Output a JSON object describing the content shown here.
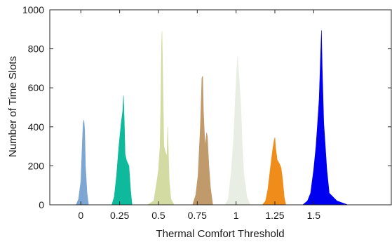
{
  "chart_data": {
    "type": "area",
    "title": "",
    "xlabel": "Thermal Comfort Threshold",
    "ylabel": "Number of Time Slots",
    "xlim": [
      -0.2,
      2.0
    ],
    "ylim": [
      0,
      1000
    ],
    "x_ticks": [
      {
        "value": 0,
        "label": "0"
      },
      {
        "value": 0.25,
        "label": "0.25"
      },
      {
        "value": 0.5,
        "label": "0.5"
      },
      {
        "value": 0.75,
        "label": "0.75"
      },
      {
        "value": 1,
        "label": "1"
      },
      {
        "value": 1.25,
        "label": "1.25"
      },
      {
        "value": 1.5,
        "label": "1.5"
      }
    ],
    "y_ticks": [
      {
        "value": 0,
        "label": "0"
      },
      {
        "value": 200,
        "label": "200"
      },
      {
        "value": 400,
        "label": "400"
      },
      {
        "value": 600,
        "label": "600"
      },
      {
        "value": 800,
        "label": "800"
      },
      {
        "value": 1000,
        "label": "1000"
      }
    ],
    "grid": false,
    "series": [
      {
        "color": "#7ea6d3",
        "points": [
          [
            -0.03,
            0
          ],
          [
            -0.015,
            30
          ],
          [
            0,
            120
          ],
          [
            0.01,
            330
          ],
          [
            0.015,
            420
          ],
          [
            0.02,
            435
          ],
          [
            0.025,
            380
          ],
          [
            0.03,
            200
          ],
          [
            0.04,
            60
          ],
          [
            0.05,
            0
          ]
        ]
      },
      {
        "color": "#0fb99b",
        "points": [
          [
            0.2,
            0
          ],
          [
            0.215,
            40
          ],
          [
            0.23,
            150
          ],
          [
            0.245,
            300
          ],
          [
            0.26,
            420
          ],
          [
            0.27,
            480
          ],
          [
            0.275,
            560
          ],
          [
            0.28,
            420
          ],
          [
            0.285,
            260
          ],
          [
            0.295,
            225
          ],
          [
            0.31,
            200
          ],
          [
            0.32,
            80
          ],
          [
            0.33,
            0
          ]
        ]
      },
      {
        "color": "#d3dba3",
        "points": [
          [
            0.43,
            0
          ],
          [
            0.47,
            20
          ],
          [
            0.49,
            120
          ],
          [
            0.5,
            180
          ],
          [
            0.51,
            300
          ],
          [
            0.515,
            520
          ],
          [
            0.52,
            820
          ],
          [
            0.523,
            890
          ],
          [
            0.527,
            700
          ],
          [
            0.535,
            300
          ],
          [
            0.545,
            270
          ],
          [
            0.555,
            250
          ],
          [
            0.56,
            400
          ],
          [
            0.563,
            300
          ],
          [
            0.57,
            120
          ],
          [
            0.58,
            30
          ],
          [
            0.6,
            0
          ]
        ]
      },
      {
        "color": "#c19a6b",
        "points": [
          [
            0.72,
            0
          ],
          [
            0.74,
            50
          ],
          [
            0.755,
            150
          ],
          [
            0.77,
            400
          ],
          [
            0.775,
            520
          ],
          [
            0.78,
            650
          ],
          [
            0.785,
            660
          ],
          [
            0.79,
            480
          ],
          [
            0.8,
            300
          ],
          [
            0.81,
            370
          ],
          [
            0.815,
            350
          ],
          [
            0.825,
            200
          ],
          [
            0.835,
            90
          ],
          [
            0.85,
            0
          ]
        ]
      },
      {
        "color": "#e8eee4",
        "points": [
          [
            0.93,
            0
          ],
          [
            0.95,
            30
          ],
          [
            0.97,
            180
          ],
          [
            0.985,
            350
          ],
          [
            0.995,
            540
          ],
          [
            1.005,
            700
          ],
          [
            1.01,
            760
          ],
          [
            1.02,
            640
          ],
          [
            1.03,
            520
          ],
          [
            1.04,
            300
          ],
          [
            1.05,
            160
          ],
          [
            1.07,
            40
          ],
          [
            1.09,
            0
          ]
        ]
      },
      {
        "color": "#f08c1a",
        "points": [
          [
            1.17,
            0
          ],
          [
            1.19,
            20
          ],
          [
            1.205,
            80
          ],
          [
            1.22,
            180
          ],
          [
            1.235,
            280
          ],
          [
            1.245,
            330
          ],
          [
            1.25,
            345
          ],
          [
            1.255,
            290
          ],
          [
            1.265,
            230
          ],
          [
            1.28,
            210
          ],
          [
            1.29,
            190
          ],
          [
            1.3,
            130
          ],
          [
            1.31,
            40
          ],
          [
            1.32,
            0
          ]
        ]
      },
      {
        "color": "#0000f0",
        "points": [
          [
            1.43,
            0
          ],
          [
            1.46,
            20
          ],
          [
            1.48,
            60
          ],
          [
            1.5,
            180
          ],
          [
            1.515,
            300
          ],
          [
            1.525,
            420
          ],
          [
            1.535,
            540
          ],
          [
            1.545,
            780
          ],
          [
            1.55,
            895
          ],
          [
            1.555,
            700
          ],
          [
            1.565,
            420
          ],
          [
            1.575,
            300
          ],
          [
            1.585,
            180
          ],
          [
            1.6,
            60
          ],
          [
            1.65,
            20
          ],
          [
            1.72,
            0
          ]
        ]
      }
    ]
  }
}
